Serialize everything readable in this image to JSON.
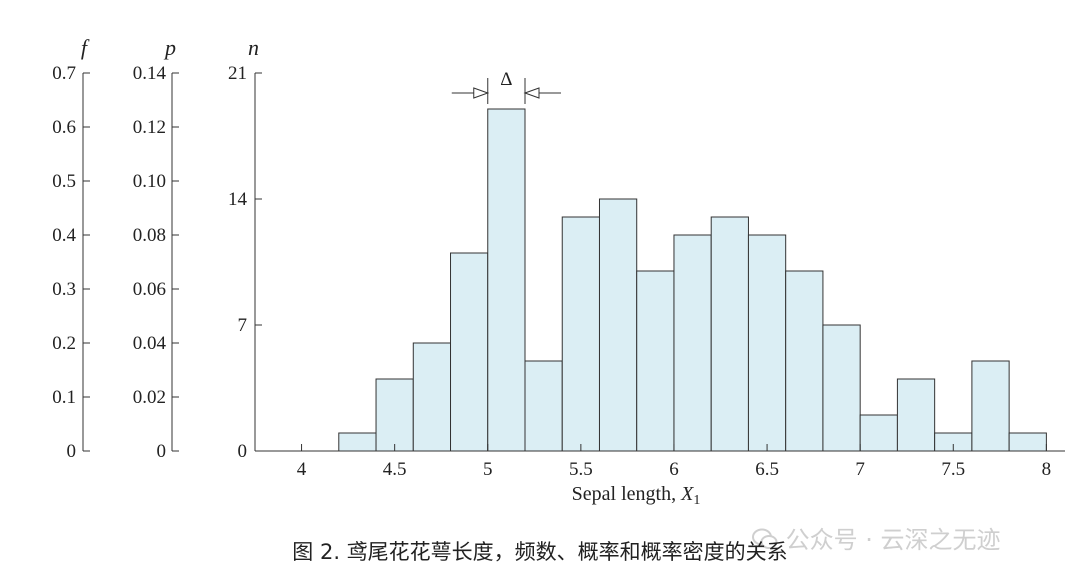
{
  "chart_data": {
    "type": "bar",
    "xlabel": "Sepal length, ",
    "xlabel_var": "X",
    "xlabel_sub": "1",
    "bin_width_symbol": "Δ",
    "xlim": [
      3.75,
      8.1
    ],
    "x_ticks": [
      "4",
      "4.5",
      "5",
      "5.5",
      "6",
      "6.5",
      "7",
      "7.5",
      "8"
    ],
    "bins": [
      {
        "start": 4.2,
        "end": 4.4,
        "count": 1
      },
      {
        "start": 4.4,
        "end": 4.6,
        "count": 4
      },
      {
        "start": 4.6,
        "end": 4.8,
        "count": 6
      },
      {
        "start": 4.8,
        "end": 5.0,
        "count": 11
      },
      {
        "start": 5.0,
        "end": 5.2,
        "count": 19
      },
      {
        "start": 5.2,
        "end": 5.4,
        "count": 5
      },
      {
        "start": 5.4,
        "end": 5.6,
        "count": 13
      },
      {
        "start": 5.6,
        "end": 5.8,
        "count": 14
      },
      {
        "start": 5.8,
        "end": 6.0,
        "count": 10
      },
      {
        "start": 6.0,
        "end": 6.2,
        "count": 12
      },
      {
        "start": 6.2,
        "end": 6.4,
        "count": 13
      },
      {
        "start": 6.4,
        "end": 6.6,
        "count": 12
      },
      {
        "start": 6.6,
        "end": 6.8,
        "count": 10
      },
      {
        "start": 6.8,
        "end": 7.0,
        "count": 7
      },
      {
        "start": 7.0,
        "end": 7.2,
        "count": 2
      },
      {
        "start": 7.2,
        "end": 7.4,
        "count": 4
      },
      {
        "start": 7.4,
        "end": 7.6,
        "count": 1
      },
      {
        "start": 7.6,
        "end": 7.8,
        "count": 5
      },
      {
        "start": 7.8,
        "end": 8.0,
        "count": 1
      }
    ],
    "axes": [
      {
        "var": "f",
        "range": [
          0,
          0.7
        ],
        "ticks": [
          "0",
          "0.1",
          "0.2",
          "0.3",
          "0.4",
          "0.5",
          "0.6",
          "0.7"
        ]
      },
      {
        "var": "p",
        "range": [
          0,
          0.14
        ],
        "ticks": [
          "0",
          "0.02",
          "0.04",
          "0.06",
          "0.08",
          "0.10",
          "0.12",
          "0.14"
        ]
      },
      {
        "var": "n",
        "range": [
          0,
          21
        ],
        "ticks": [
          "0",
          "7",
          "14",
          "21"
        ]
      }
    ],
    "bar_color": "#dbeef4",
    "bar_edge_color": "#333333"
  },
  "caption": "图 2. 鸢尾花花萼长度，频数、概率和概率密度的关系",
  "watermark": "公众号 · 云深之无迹"
}
